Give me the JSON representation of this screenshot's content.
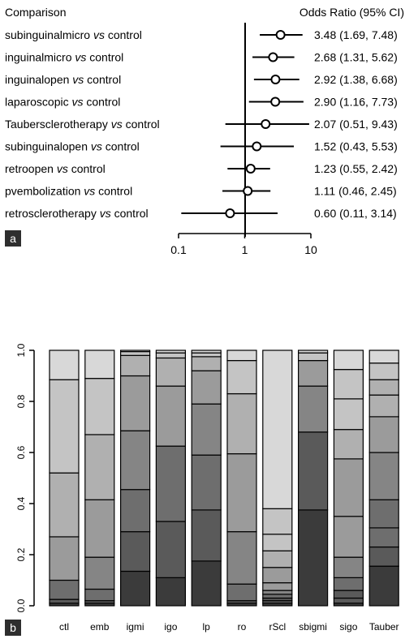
{
  "chart_data": [
    {
      "type": "forest",
      "panel_label": "a",
      "column_headers": {
        "left": "Comparison",
        "right": "Odds Ratio (95% CI)"
      },
      "x_scale": "log",
      "xlim": [
        0.1,
        10
      ],
      "x_ticks": [
        "0.1",
        "1",
        "10"
      ],
      "reference_line": 1,
      "rows": [
        {
          "prefix": "subinguinalmicro",
          "vs": "vs",
          "suffix": "control",
          "or": 3.48,
          "lo": 1.69,
          "hi": 7.48,
          "label": "3.48 (1.69, 7.48)"
        },
        {
          "prefix": "inguinalmicro",
          "vs": "vs",
          "suffix": "control",
          "or": 2.68,
          "lo": 1.31,
          "hi": 5.62,
          "label": "2.68 (1.31, 5.62)"
        },
        {
          "prefix": "inguinalopen",
          "vs": "vs",
          "suffix": "control",
          "or": 2.92,
          "lo": 1.38,
          "hi": 6.68,
          "label": "2.92 (1.38, 6.68)"
        },
        {
          "prefix": "laparoscopic",
          "vs": "vs",
          "suffix": "control",
          "or": 2.9,
          "lo": 1.16,
          "hi": 7.73,
          "label": "2.90 (1.16, 7.73)"
        },
        {
          "prefix": "Taubersclerotherapy",
          "vs": "vs",
          "suffix": "control",
          "or": 2.07,
          "lo": 0.51,
          "hi": 9.43,
          "label": "2.07 (0.51, 9.43)"
        },
        {
          "prefix": "subinguinalopen",
          "vs": "vs",
          "suffix": "control",
          "or": 1.52,
          "lo": 0.43,
          "hi": 5.53,
          "label": "1.52 (0.43, 5.53)"
        },
        {
          "prefix": "retroopen",
          "vs": "vs",
          "suffix": "control",
          "or": 1.23,
          "lo": 0.55,
          "hi": 2.42,
          "label": "1.23 (0.55, 2.42)"
        },
        {
          "prefix": "pvembolization",
          "vs": "vs",
          "suffix": "control",
          "or": 1.11,
          "lo": 0.46,
          "hi": 2.45,
          "label": "1.11 (0.46, 2.45)"
        },
        {
          "prefix": "retrosclerotherapy",
          "vs": "vs",
          "suffix": "control",
          "or": 0.6,
          "lo": 0.11,
          "hi": 3.14,
          "label": "0.60 (0.11, 3.14)"
        }
      ]
    },
    {
      "type": "stacked_bar",
      "panel_label": "b",
      "ylim": [
        0,
        1
      ],
      "y_ticks": [
        "0.0",
        "0.2",
        "0.4",
        "0.6",
        "0.8",
        "1.0"
      ],
      "categories": [
        "ctl",
        "emb",
        "igmi",
        "igo",
        "lp",
        "ro",
        "rScl",
        "sbigmi",
        "sigo",
        "Tauber"
      ],
      "boundaries": [
        [
          0.0,
          0.01,
          0.025,
          0.1,
          0.27,
          0.52,
          0.885,
          1.0
        ],
        [
          0.0,
          0.01,
          0.02,
          0.065,
          0.19,
          0.415,
          0.67,
          0.89,
          1.0
        ],
        [
          0.0,
          0.135,
          0.29,
          0.455,
          0.685,
          0.9,
          0.98,
          0.995,
          1.0
        ],
        [
          0.0,
          0.11,
          0.33,
          0.625,
          0.86,
          0.97,
          0.99,
          1.0
        ],
        [
          0.0,
          0.175,
          0.375,
          0.59,
          0.79,
          0.92,
          0.975,
          0.99,
          1.0
        ],
        [
          0.0,
          0.01,
          0.02,
          0.085,
          0.29,
          0.595,
          0.83,
          0.96,
          1.0
        ],
        [
          0.0,
          0.01,
          0.02,
          0.03,
          0.045,
          0.06,
          0.09,
          0.15,
          0.215,
          0.28,
          0.38,
          1.0
        ],
        [
          0.0,
          0.375,
          0.68,
          0.86,
          0.96,
          0.99,
          1.0
        ],
        [
          0.0,
          0.01,
          0.03,
          0.06,
          0.11,
          0.19,
          0.35,
          0.575,
          0.69,
          0.81,
          0.925,
          1.0
        ],
        [
          0.0,
          0.155,
          0.23,
          0.305,
          0.415,
          0.6,
          0.74,
          0.825,
          0.885,
          0.95,
          1.0
        ]
      ]
    }
  ]
}
